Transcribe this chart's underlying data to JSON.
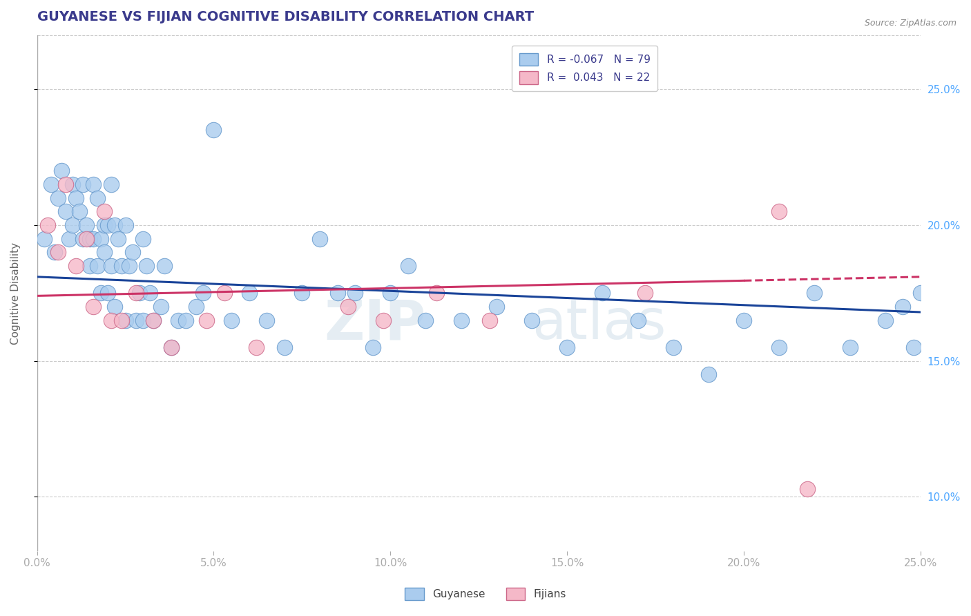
{
  "title": "GUYANESE VS FIJIAN COGNITIVE DISABILITY CORRELATION CHART",
  "source_text": "Source: ZipAtlas.com",
  "ylabel": "Cognitive Disability",
  "xlim": [
    0.0,
    0.25
  ],
  "ylim": [
    0.08,
    0.27
  ],
  "xtick_labels": [
    "0.0%",
    "5.0%",
    "10.0%",
    "15.0%",
    "20.0%",
    "25.0%"
  ],
  "xtick_values": [
    0.0,
    0.05,
    0.1,
    0.15,
    0.2,
    0.25
  ],
  "ytick_labels": [
    "10.0%",
    "15.0%",
    "20.0%",
    "25.0%"
  ],
  "ytick_values": [
    0.1,
    0.15,
    0.2,
    0.25
  ],
  "title_color": "#3a3a8c",
  "title_fontsize": 14,
  "axis_label_color": "#666666",
  "tick_label_color": "#4da6ff",
  "legend_R1": "-0.067",
  "legend_N1": "79",
  "legend_R2": " 0.043",
  "legend_N2": "22",
  "guyanese_color": "#aaccee",
  "guyanese_edge_color": "#6699cc",
  "fijian_color": "#f5b8c8",
  "fijian_edge_color": "#cc6688",
  "trend_blue": "#1a4499",
  "trend_pink": "#cc3366",
  "trend_pink_dash": "#cc3366",
  "background_color": "#ffffff",
  "grid_color": "#cccccc",
  "blue_trend_x": [
    0.0,
    0.25
  ],
  "blue_trend_y": [
    0.181,
    0.168
  ],
  "pink_trend_x": [
    0.0,
    0.25
  ],
  "pink_trend_y": [
    0.174,
    0.181
  ],
  "guyanese_x": [
    0.002,
    0.004,
    0.005,
    0.006,
    0.007,
    0.008,
    0.009,
    0.01,
    0.01,
    0.011,
    0.012,
    0.013,
    0.013,
    0.014,
    0.015,
    0.015,
    0.016,
    0.016,
    0.017,
    0.017,
    0.018,
    0.018,
    0.019,
    0.019,
    0.02,
    0.02,
    0.021,
    0.021,
    0.022,
    0.022,
    0.023,
    0.024,
    0.025,
    0.025,
    0.026,
    0.027,
    0.028,
    0.029,
    0.03,
    0.03,
    0.031,
    0.032,
    0.033,
    0.035,
    0.036,
    0.038,
    0.04,
    0.042,
    0.045,
    0.047,
    0.05,
    0.055,
    0.06,
    0.065,
    0.07,
    0.075,
    0.08,
    0.085,
    0.09,
    0.095,
    0.1,
    0.105,
    0.11,
    0.12,
    0.13,
    0.14,
    0.15,
    0.16,
    0.17,
    0.18,
    0.19,
    0.2,
    0.21,
    0.22,
    0.23,
    0.24,
    0.245,
    0.248,
    0.25
  ],
  "guyanese_y": [
    0.195,
    0.215,
    0.19,
    0.21,
    0.22,
    0.205,
    0.195,
    0.215,
    0.2,
    0.21,
    0.205,
    0.215,
    0.195,
    0.2,
    0.195,
    0.185,
    0.215,
    0.195,
    0.21,
    0.185,
    0.195,
    0.175,
    0.2,
    0.19,
    0.2,
    0.175,
    0.215,
    0.185,
    0.2,
    0.17,
    0.195,
    0.185,
    0.2,
    0.165,
    0.185,
    0.19,
    0.165,
    0.175,
    0.195,
    0.165,
    0.185,
    0.175,
    0.165,
    0.17,
    0.185,
    0.155,
    0.165,
    0.165,
    0.17,
    0.175,
    0.235,
    0.165,
    0.175,
    0.165,
    0.155,
    0.175,
    0.195,
    0.175,
    0.175,
    0.155,
    0.175,
    0.185,
    0.165,
    0.165,
    0.17,
    0.165,
    0.155,
    0.175,
    0.165,
    0.155,
    0.145,
    0.165,
    0.155,
    0.175,
    0.155,
    0.165,
    0.17,
    0.155,
    0.175
  ],
  "fijian_x": [
    0.003,
    0.006,
    0.008,
    0.011,
    0.014,
    0.016,
    0.019,
    0.021,
    0.024,
    0.028,
    0.033,
    0.038,
    0.048,
    0.053,
    0.062,
    0.088,
    0.098,
    0.113,
    0.128,
    0.172,
    0.21,
    0.218
  ],
  "fijian_y": [
    0.2,
    0.19,
    0.215,
    0.185,
    0.195,
    0.17,
    0.205,
    0.165,
    0.165,
    0.175,
    0.165,
    0.155,
    0.165,
    0.175,
    0.155,
    0.17,
    0.165,
    0.175,
    0.165,
    0.175,
    0.205,
    0.103
  ]
}
